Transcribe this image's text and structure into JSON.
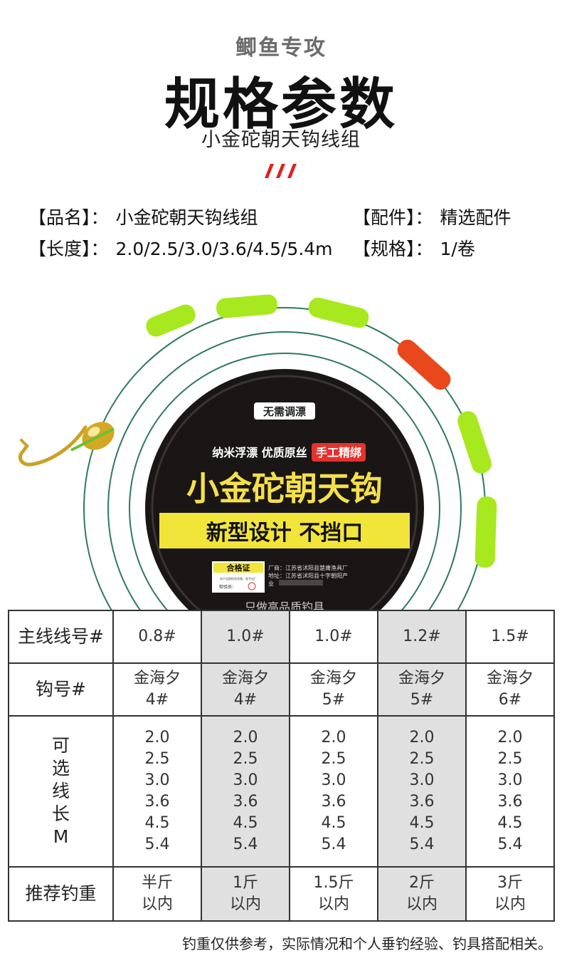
{
  "header": {
    "subtitle": "鲫鱼专攻",
    "title": "规格参数",
    "caption": "小金砣朝天钩线组"
  },
  "specs": {
    "name_label": "【品名】：",
    "name_value": "小金砣朝天钩线组",
    "parts_label": "【配件】：",
    "parts_value": "精选配件",
    "length_label": "【长度】：",
    "length_value": "2.0/2.5/3.0/3.6/4.5/5.4m",
    "size_label": "【规格】：",
    "size_value": "1/卷"
  },
  "spool": {
    "badge": "无需调漂",
    "features": "纳米浮漂 优质原丝",
    "handmade": "手工精绑",
    "brand": "小金砣朝天钩",
    "slogan": "新型设计 不挡口",
    "certificate": "合格证",
    "factory": "厂商：江苏省沭阳县楚庸渔具厂",
    "address": "地址：江苏省沭阳县十字朝阳产",
    "industry": "业",
    "inspector": "检验员：",
    "fine_print": "本产品经检验合格，准予出厂",
    "bottom_text": "只做高品质钓具",
    "colors": {
      "disc": "#1a1615",
      "brand_text": "#f5e04a",
      "slogan_bg": "#f2e53a",
      "tag": "#e5322d",
      "float_green": "#a8e81f",
      "float_red": "#e8481c",
      "line": "#2f7a5a"
    }
  },
  "table": {
    "rows": [
      {
        "label": "主线线号#",
        "cells": [
          [
            "0.8#"
          ],
          [
            "1.0#"
          ],
          [
            "1.0#"
          ],
          [
            "1.2#"
          ],
          [
            "1.5#"
          ]
        ]
      },
      {
        "label": "钩号#",
        "cells": [
          [
            "金海夕",
            "4#"
          ],
          [
            "金海夕",
            "4#"
          ],
          [
            "金海夕",
            "5#"
          ],
          [
            "金海夕",
            "5#"
          ],
          [
            "金海夕",
            "6#"
          ]
        ]
      },
      {
        "label": "可选线长M",
        "cells": [
          [
            "2.0",
            "2.5",
            "3.0",
            "3.6",
            "4.5",
            "5.4"
          ],
          [
            "2.0",
            "2.5",
            "3.0",
            "3.6",
            "4.5",
            "5.4"
          ],
          [
            "2.0",
            "2.5",
            "3.0",
            "3.6",
            "4.5",
            "5.4"
          ],
          [
            "2.0",
            "2.5",
            "3.0",
            "3.6",
            "4.5",
            "5.4"
          ],
          [
            "2.0",
            "2.5",
            "3.0",
            "3.6",
            "4.5",
            "5.4"
          ]
        ]
      },
      {
        "label": "推荐钓重",
        "cells": [
          [
            "半斤",
            "以内"
          ],
          [
            "1斤",
            "以内"
          ],
          [
            "1.5斤",
            "以内"
          ],
          [
            "2斤",
            "以内"
          ],
          [
            "3斤",
            "以内"
          ]
        ]
      }
    ]
  },
  "footer": {
    "note": "钓重仅供参考，实际情况和个人垂钓经验、钓具搭配相关。"
  }
}
